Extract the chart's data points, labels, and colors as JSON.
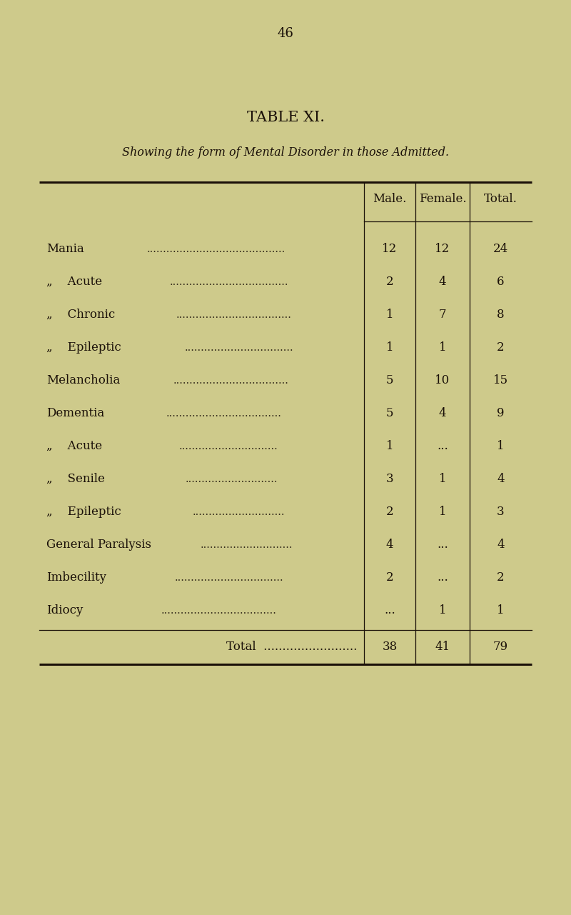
{
  "page_number": "46",
  "title": "TABLE XI.",
  "subtitle": "Showing the form of Mental Disorder in those Admitted.",
  "col_headers": [
    "Male.",
    "Female.",
    "Total."
  ],
  "rows": [
    {
      "label": "Mania",
      "indent": 0,
      "male": "12",
      "female": "12",
      "total": "24"
    },
    {
      "label": "Acute",
      "indent": 1,
      "male": "2",
      "female": "4",
      "total": "6"
    },
    {
      "label": "Chronic",
      "indent": 1,
      "male": "1",
      "female": "7",
      "total": "8"
    },
    {
      "label": "Epileptic",
      "indent": 1,
      "male": "1",
      "female": "1",
      "total": "2"
    },
    {
      "label": "Melancholia",
      "indent": 0,
      "male": "5",
      "female": "10",
      "total": "15"
    },
    {
      "label": "Dementia",
      "indent": 0,
      "male": "5",
      "female": "4",
      "total": "9"
    },
    {
      "label": "Acute",
      "indent": 1,
      "male": "1",
      "female": "...",
      "total": "1"
    },
    {
      "label": "Senile",
      "indent": 1,
      "male": "3",
      "female": "1",
      "total": "4"
    },
    {
      "label": "Epileptic",
      "indent": 1,
      "male": "2",
      "female": "1",
      "total": "3"
    },
    {
      "label": "General Paralysis",
      "indent": 0,
      "male": "4",
      "female": "...",
      "total": "4"
    },
    {
      "label": "Imbecility",
      "indent": 0,
      "male": "2",
      "female": "...",
      "total": "2"
    },
    {
      "label": "Idiocy",
      "indent": 0,
      "male": "...",
      "female": "1",
      "total": "1"
    }
  ],
  "total_row": {
    "label": "Total",
    "male": "38",
    "female": "41",
    "total": "79"
  },
  "bg_color": "#ceca8b",
  "text_color": "#1a1008",
  "page_num_fontsize": 13,
  "title_fontsize": 15,
  "subtitle_fontsize": 11.5,
  "body_fontsize": 12,
  "header_fontsize": 12
}
